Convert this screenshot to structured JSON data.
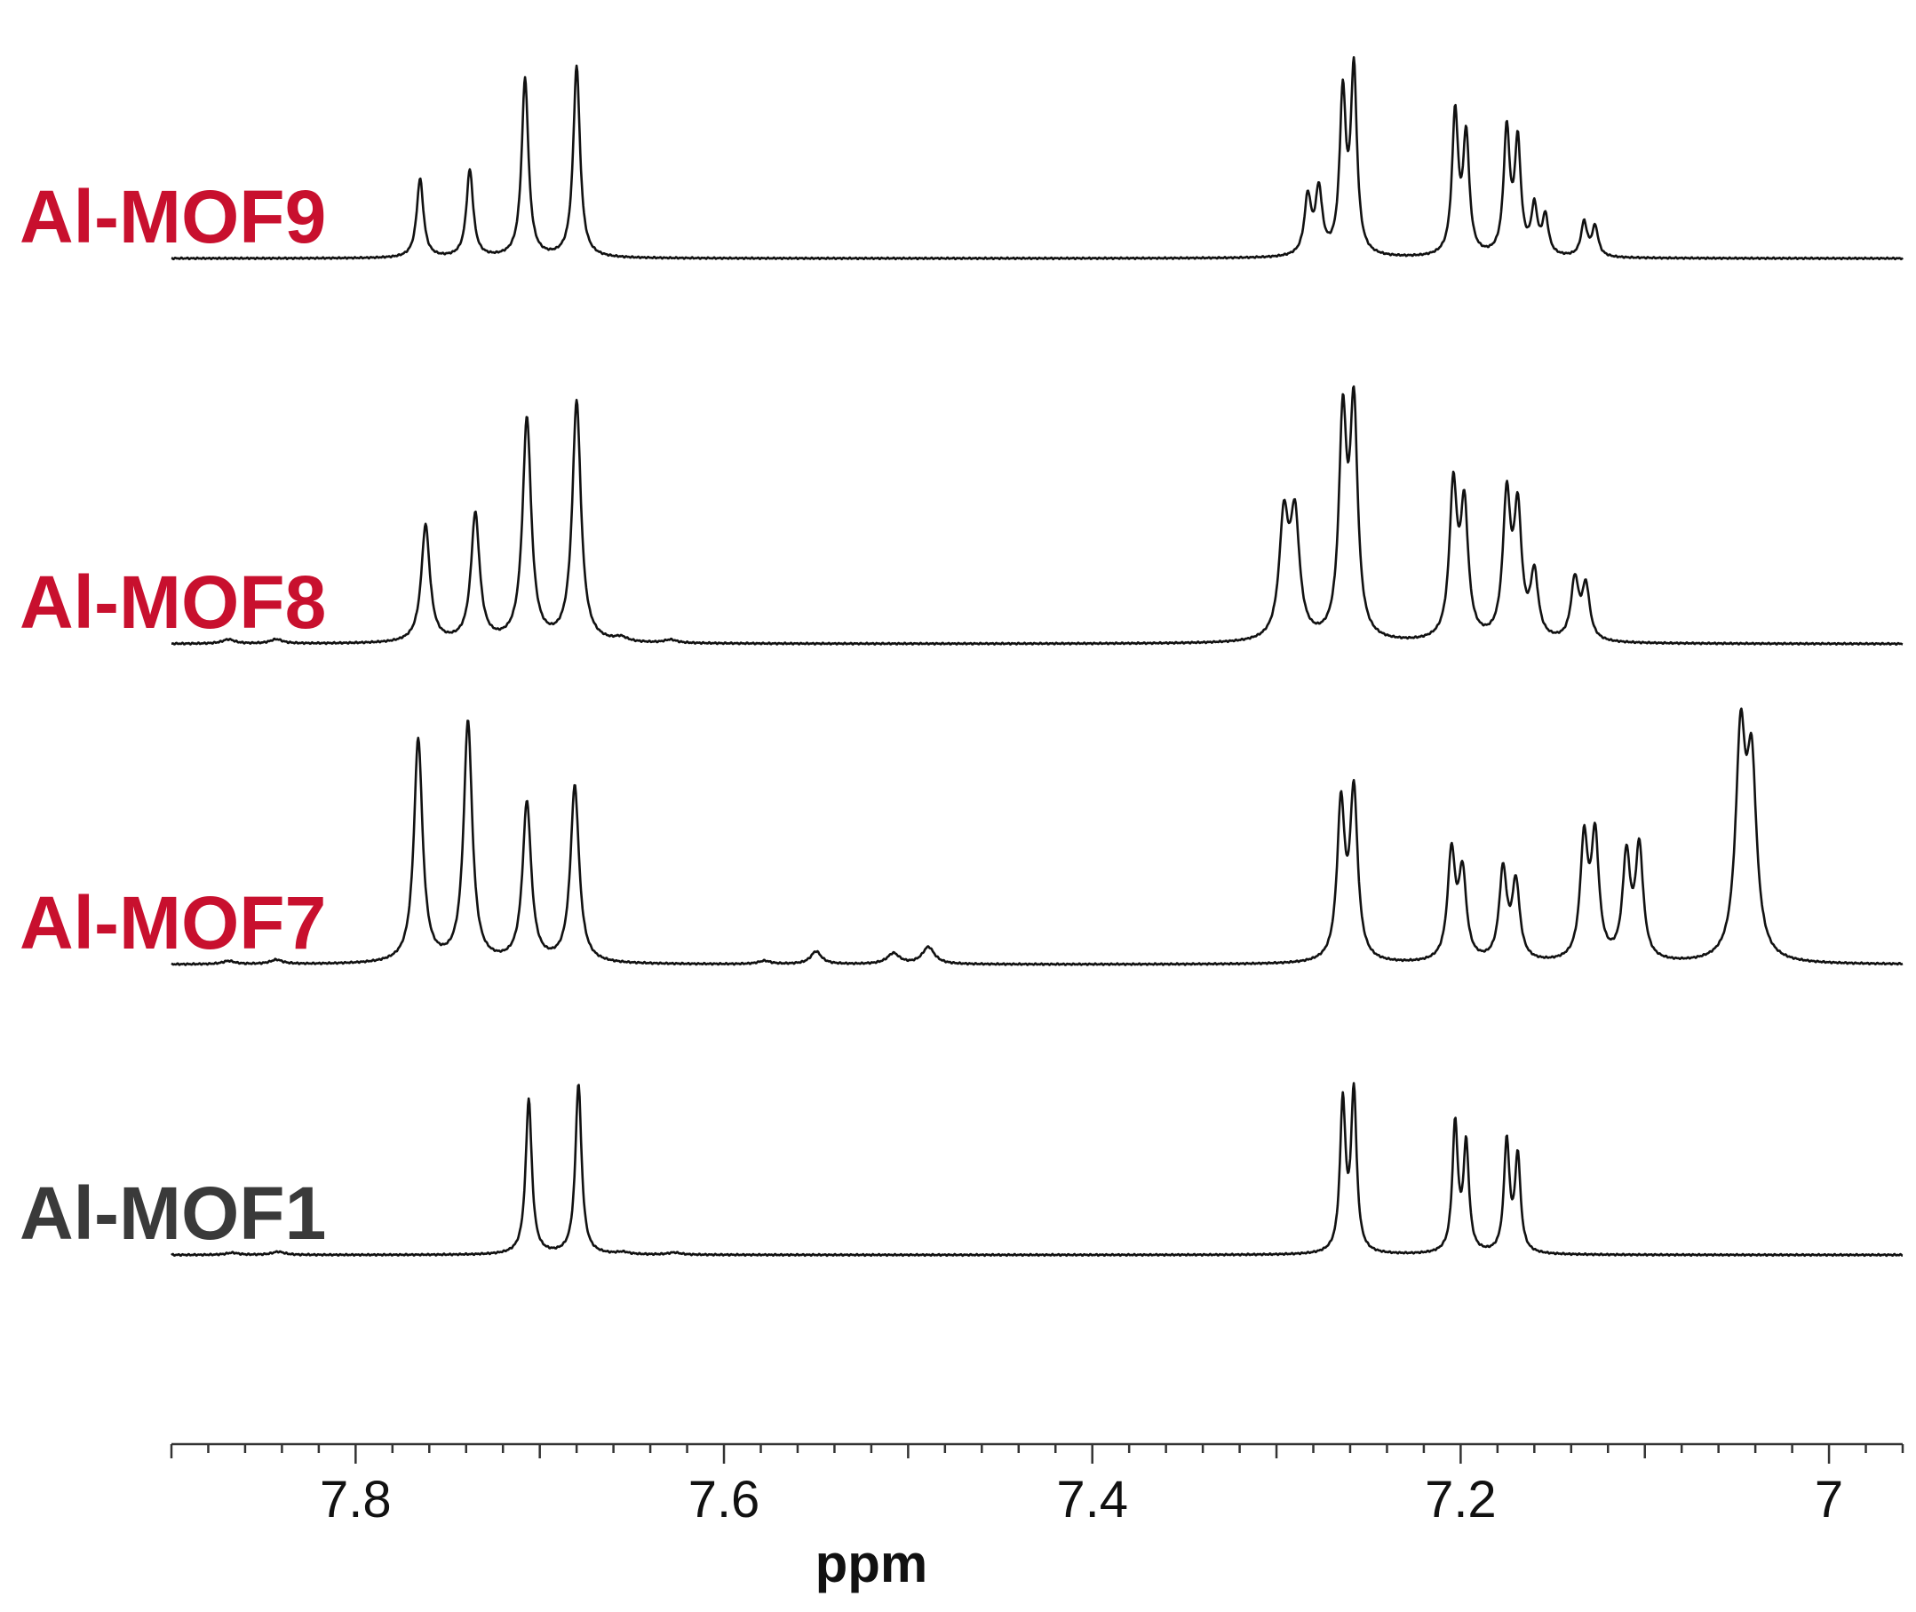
{
  "chart_data": {
    "type": "line",
    "xlabel": "ppm",
    "xlim": [
      7.9,
      6.96
    ],
    "x_reversed": true,
    "x_ticks": [
      {
        "value": 7.8,
        "label": "7.8"
      },
      {
        "value": 7.6,
        "label": "7.6"
      },
      {
        "value": 7.4,
        "label": "7.4"
      },
      {
        "value": 7.2,
        "label": "7.2"
      },
      {
        "value": 7.0,
        "label": "7"
      }
    ],
    "minor_tick_step": 0.02,
    "grid": false,
    "legend": "none",
    "series": [
      {
        "name": "Al-MOF9",
        "color": "#c8102e",
        "relative_offset": 3,
        "peaks": [
          {
            "x": 7.765,
            "h": 0.37,
            "w": 0.0022
          },
          {
            "x": 7.738,
            "h": 0.41,
            "w": 0.0022
          },
          {
            "x": 7.708,
            "h": 0.84,
            "w": 0.0022
          },
          {
            "x": 7.68,
            "h": 0.9,
            "w": 0.0022
          },
          {
            "x": 7.283,
            "h": 0.27,
            "w": 0.0022
          },
          {
            "x": 7.277,
            "h": 0.3,
            "w": 0.0022
          },
          {
            "x": 7.264,
            "h": 0.74,
            "w": 0.002
          },
          {
            "x": 7.258,
            "h": 0.86,
            "w": 0.002
          },
          {
            "x": 7.203,
            "h": 0.66,
            "w": 0.002
          },
          {
            "x": 7.197,
            "h": 0.55,
            "w": 0.002
          },
          {
            "x": 7.175,
            "h": 0.58,
            "w": 0.002
          },
          {
            "x": 7.169,
            "h": 0.52,
            "w": 0.002
          },
          {
            "x": 7.16,
            "h": 0.22,
            "w": 0.002
          },
          {
            "x": 7.154,
            "h": 0.18,
            "w": 0.002
          },
          {
            "x": 7.133,
            "h": 0.16,
            "w": 0.002
          },
          {
            "x": 7.127,
            "h": 0.14,
            "w": 0.002
          }
        ]
      },
      {
        "name": "Al-MOF8",
        "color": "#c8102e",
        "relative_offset": 2,
        "peaks": [
          {
            "x": 7.869,
            "h": 0.02,
            "w": 0.004
          },
          {
            "x": 7.843,
            "h": 0.02,
            "w": 0.004
          },
          {
            "x": 7.762,
            "h": 0.55,
            "w": 0.0028
          },
          {
            "x": 7.735,
            "h": 0.6,
            "w": 0.0028
          },
          {
            "x": 7.707,
            "h": 1.05,
            "w": 0.0028
          },
          {
            "x": 7.68,
            "h": 1.13,
            "w": 0.0028
          },
          {
            "x": 7.656,
            "h": 0.02,
            "w": 0.004
          },
          {
            "x": 7.629,
            "h": 0.015,
            "w": 0.004
          },
          {
            "x": 7.296,
            "h": 0.55,
            "w": 0.003
          },
          {
            "x": 7.29,
            "h": 0.55,
            "w": 0.003
          },
          {
            "x": 7.264,
            "h": 1.0,
            "w": 0.0025
          },
          {
            "x": 7.258,
            "h": 1.05,
            "w": 0.0025
          },
          {
            "x": 7.204,
            "h": 0.7,
            "w": 0.0025
          },
          {
            "x": 7.198,
            "h": 0.6,
            "w": 0.0025
          },
          {
            "x": 7.175,
            "h": 0.65,
            "w": 0.0025
          },
          {
            "x": 7.169,
            "h": 0.58,
            "w": 0.0025
          },
          {
            "x": 7.16,
            "h": 0.3,
            "w": 0.0025
          },
          {
            "x": 7.138,
            "h": 0.28,
            "w": 0.0025
          },
          {
            "x": 7.132,
            "h": 0.25,
            "w": 0.0025
          }
        ]
      },
      {
        "name": "Al-MOF7",
        "color": "#c8102e",
        "relative_offset": 1,
        "peaks": [
          {
            "x": 7.869,
            "h": 0.015,
            "w": 0.004
          },
          {
            "x": 7.843,
            "h": 0.02,
            "w": 0.004
          },
          {
            "x": 7.766,
            "h": 1.05,
            "w": 0.0028
          },
          {
            "x": 7.739,
            "h": 1.13,
            "w": 0.0028
          },
          {
            "x": 7.707,
            "h": 0.75,
            "w": 0.0028
          },
          {
            "x": 7.681,
            "h": 0.83,
            "w": 0.0028
          },
          {
            "x": 7.578,
            "h": 0.015,
            "w": 0.004
          },
          {
            "x": 7.55,
            "h": 0.06,
            "w": 0.0035
          },
          {
            "x": 7.508,
            "h": 0.05,
            "w": 0.004
          },
          {
            "x": 7.489,
            "h": 0.08,
            "w": 0.004
          },
          {
            "x": 7.265,
            "h": 0.72,
            "w": 0.0025
          },
          {
            "x": 7.258,
            "h": 0.78,
            "w": 0.0025
          },
          {
            "x": 7.205,
            "h": 0.5,
            "w": 0.0025
          },
          {
            "x": 7.199,
            "h": 0.4,
            "w": 0.0025
          },
          {
            "x": 7.177,
            "h": 0.42,
            "w": 0.0025
          },
          {
            "x": 7.17,
            "h": 0.36,
            "w": 0.0025
          },
          {
            "x": 7.133,
            "h": 0.55,
            "w": 0.0025
          },
          {
            "x": 7.127,
            "h": 0.56,
            "w": 0.0025
          },
          {
            "x": 7.11,
            "h": 0.48,
            "w": 0.0025
          },
          {
            "x": 7.103,
            "h": 0.52,
            "w": 0.0025
          },
          {
            "x": 7.048,
            "h": 1.0,
            "w": 0.0032
          },
          {
            "x": 7.042,
            "h": 0.85,
            "w": 0.0032
          }
        ]
      },
      {
        "name": "Al-MOF1",
        "color": "#3a3a3a",
        "relative_offset": 0,
        "peaks": [
          {
            "x": 7.867,
            "h": 0.01,
            "w": 0.004
          },
          {
            "x": 7.842,
            "h": 0.015,
            "w": 0.004
          },
          {
            "x": 7.706,
            "h": 0.73,
            "w": 0.002
          },
          {
            "x": 7.679,
            "h": 0.8,
            "w": 0.002
          },
          {
            "x": 7.655,
            "h": 0.01,
            "w": 0.004
          },
          {
            "x": 7.627,
            "h": 0.01,
            "w": 0.004
          },
          {
            "x": 7.264,
            "h": 0.7,
            "w": 0.0018
          },
          {
            "x": 7.258,
            "h": 0.75,
            "w": 0.0018
          },
          {
            "x": 7.203,
            "h": 0.6,
            "w": 0.0018
          },
          {
            "x": 7.197,
            "h": 0.5,
            "w": 0.0018
          },
          {
            "x": 7.175,
            "h": 0.52,
            "w": 0.0018
          },
          {
            "x": 7.169,
            "h": 0.45,
            "w": 0.0018
          }
        ]
      }
    ]
  }
}
